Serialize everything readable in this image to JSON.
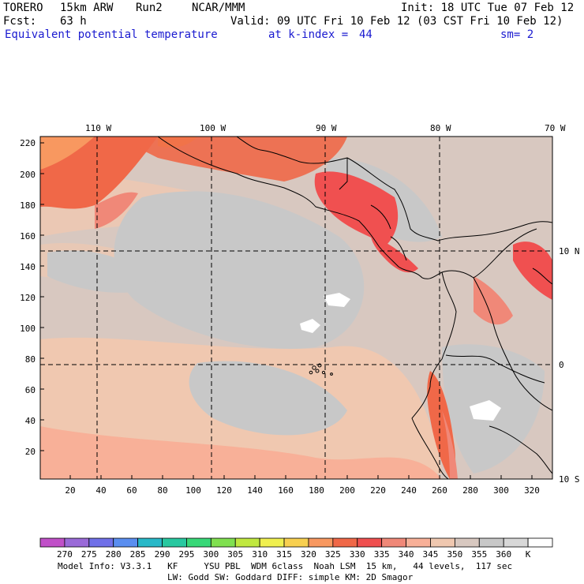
{
  "header": {
    "model_label": "TORERO",
    "resolution_label": "15km ARW",
    "run_label": "Run2",
    "org_label": "NCAR/MMM",
    "init_label": "Init: 18 UTC Tue 07 Feb 12",
    "fcst_label": "Fcst:",
    "fcst_hours": "63 h",
    "valid_label": "Valid: 09 UTC Fri 10 Feb 12 (03 CST Fri 10 Feb 12)",
    "field_name": "Equivalent potential temperature",
    "level_label": "at k-index =",
    "level_value": "44",
    "smoothing_label": "sm= 2"
  },
  "map": {
    "top_lon_labels": [
      "110 W",
      "100 W",
      "90 W",
      "80 W",
      "70 W"
    ],
    "right_lat_labels": [
      "10 N",
      "0",
      "10 S"
    ],
    "left_grid_labels": [
      "220",
      "200",
      "180",
      "160",
      "140",
      "120",
      "100",
      "80",
      "60",
      "40",
      "20"
    ],
    "bottom_grid_labels": [
      "20",
      "40",
      "60",
      "80",
      "100",
      "120",
      "140",
      "160",
      "180",
      "200",
      "220",
      "240",
      "260",
      "280",
      "300",
      "320"
    ]
  },
  "colorbar": {
    "labels": [
      "270",
      "275",
      "280",
      "285",
      "290",
      "295",
      "300",
      "305",
      "310",
      "315",
      "320",
      "325",
      "330",
      "335",
      "340",
      "345",
      "350",
      "355",
      "360",
      "K"
    ],
    "colors": [
      "#c050c8",
      "#9a6ad8",
      "#7070e8",
      "#5a8ef0",
      "#28b8c8",
      "#28c8a0",
      "#38d878",
      "#80e050",
      "#c0e840",
      "#f0f050",
      "#f8d050",
      "#f89860",
      "#f06848",
      "#f05050",
      "#f08878",
      "#f8b098",
      "#f0c8b0",
      "#d8c8c0",
      "#c8c8c8",
      "#d8d8d8",
      "#ffffff"
    ]
  },
  "footer": {
    "line1": "Model Info: V3.3.1   KF     YSU PBL  WDM 6class  Noah LSM  15 km,   44 levels,  117 sec",
    "line2": "LW: Godd SW: Goddard DIFF: simple KM: 2D Smagor"
  }
}
